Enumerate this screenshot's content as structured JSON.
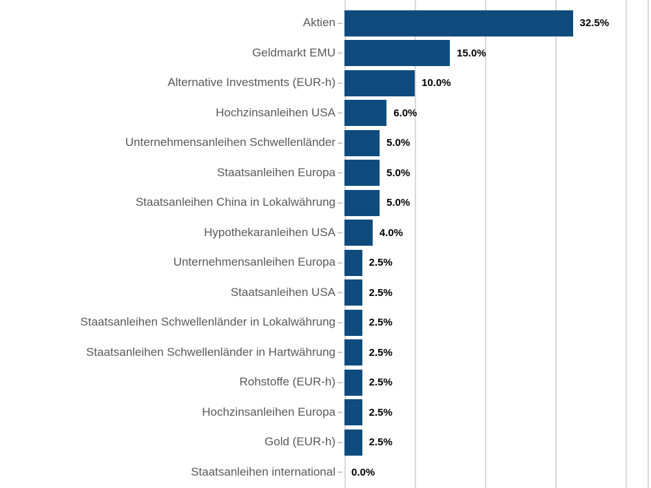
{
  "chart_data": {
    "type": "bar",
    "orientation": "horizontal",
    "title": "",
    "xlabel": "",
    "ylabel": "",
    "categories": [
      "Aktien",
      "Geldmarkt EMU",
      "Alternative Investments (EUR-h)",
      "Hochzinsanleihen USA",
      "Unternehmensanleihen Schwellenländer",
      "Staatsanleihen Europa",
      "Staatsanleihen China in Lokalwährung",
      "Hypothekaranleihen USA",
      "Unternehmensanleihen Europa",
      "Staatsanleihen USA",
      "Staatsanleihen Schwellenländer in Lokalwährung",
      "Staatsanleihen Schwellenländer in Hartwährung",
      "Rohstoffe (EUR-h)",
      "Hochzinsanleihen Europa",
      "Gold (EUR-h)",
      "Staatsanleihen international"
    ],
    "values": [
      32.5,
      15.0,
      10.0,
      6.0,
      5.0,
      5.0,
      5.0,
      4.0,
      2.5,
      2.5,
      2.5,
      2.5,
      2.5,
      2.5,
      2.5,
      0.0
    ],
    "value_labels": [
      "32.5%",
      "15.0%",
      "10.0%",
      "6.0%",
      "5.0%",
      "5.0%",
      "5.0%",
      "4.0%",
      "2.5%",
      "2.5%",
      "2.5%",
      "2.5%",
      "2.5%",
      "2.5%",
      "2.5%",
      "0.0%"
    ],
    "xlim": [
      0,
      43.5
    ],
    "gridline_interval_pct": 10,
    "grid": true,
    "legend": false,
    "bar_color": "#0F4C7D",
    "category_label_color": "#595959",
    "value_label_color": "#000000",
    "gridline_color": "#D9D9D9",
    "tick_color": "#C9C9C9",
    "background_color": "#FFFFFF"
  }
}
